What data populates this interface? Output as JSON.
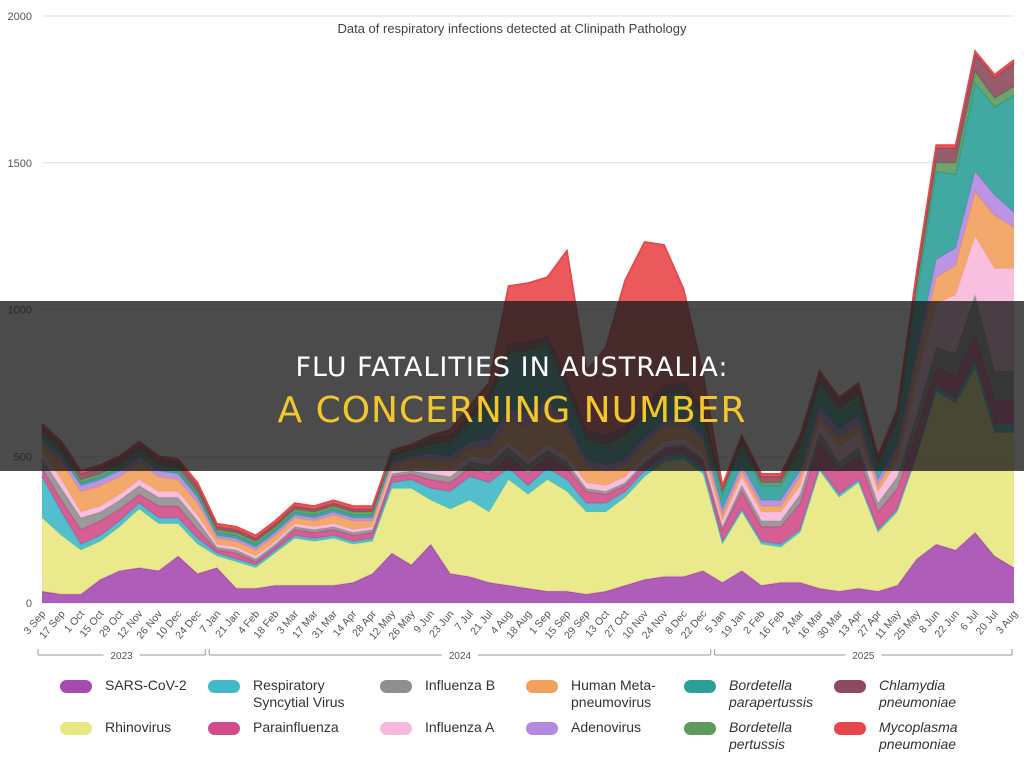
{
  "banner": {
    "line1": "FLU FATALITIES IN AUSTRALIA:",
    "line2": "A CONCERNING NUMBER"
  },
  "chart_data": {
    "type": "area",
    "stacked": true,
    "title": "Data of respiratory infections detected at Clinipath Pathology",
    "xlabel": "",
    "ylabel": "",
    "ylim": [
      0,
      2000
    ],
    "yticks": [
      0,
      500,
      1000,
      1500,
      2000
    ],
    "grid": true,
    "legend_position": "bottom",
    "year_labels": [
      "2023",
      "2024",
      "2025"
    ],
    "x": [
      "3 Sep",
      "17 Sep",
      "1 Oct",
      "15 Oct",
      "29 Oct",
      "12 Nov",
      "26 Nov",
      "10 Dec",
      "24 Dec",
      "7 Jan",
      "21 Jan",
      "4 Feb",
      "18 Feb",
      "3 Mar",
      "17 Mar",
      "31 Mar",
      "14 Apr",
      "28 Apr",
      "12 May",
      "26 May",
      "9 Jun",
      "23 Jun",
      "7 Jul",
      "21 Jul",
      "4 Aug",
      "18 Aug",
      "1 Sep",
      "15 Sep",
      "29 Sep",
      "13 Oct",
      "27 Oct",
      "10 Nov",
      "24 Nov",
      "8 Dec",
      "22 Dec",
      "5 Jan",
      "19 Jan",
      "2 Feb",
      "16 Feb",
      "2 Mar",
      "16 Mar",
      "30 Mar",
      "13 Apr",
      "27 Apr",
      "11 May",
      "25 May",
      "8 Jun",
      "22 Jun",
      "6 Jul",
      "20 Jul",
      "3 Aug"
    ],
    "series": [
      {
        "name": "SARS-CoV-2",
        "color": "#a54bb0",
        "values": [
          40,
          30,
          30,
          80,
          110,
          120,
          110,
          160,
          100,
          120,
          50,
          50,
          60,
          60,
          60,
          60,
          70,
          100,
          170,
          130,
          200,
          100,
          90,
          70,
          60,
          50,
          40,
          40,
          30,
          40,
          60,
          80,
          90,
          90,
          110,
          70,
          110,
          60,
          70,
          70,
          50,
          40,
          50,
          40,
          60,
          150,
          200,
          180,
          240,
          160,
          120
        ]
      },
      {
        "name": "Rhinovirus",
        "color": "#e8e880",
        "values": [
          250,
          200,
          150,
          130,
          150,
          200,
          160,
          110,
          100,
          40,
          90,
          70,
          110,
          160,
          150,
          160,
          130,
          110,
          220,
          260,
          150,
          220,
          260,
          240,
          360,
          320,
          380,
          340,
          280,
          270,
          300,
          350,
          390,
          400,
          330,
          130,
          200,
          140,
          120,
          170,
          400,
          320,
          360,
          200,
          250,
          350,
          520,
          500,
          560,
          420,
          460
        ]
      },
      {
        "name": "Respiratory Syncytial Virus",
        "color": "#40b8c8",
        "values": [
          140,
          80,
          20,
          20,
          20,
          20,
          20,
          20,
          20,
          10,
          10,
          10,
          10,
          10,
          10,
          10,
          10,
          10,
          20,
          30,
          40,
          60,
          80,
          100,
          40,
          30,
          40,
          40,
          30,
          30,
          20,
          20,
          20,
          20,
          20,
          10,
          10,
          10,
          10,
          10,
          10,
          10,
          10,
          10,
          10,
          10,
          20,
          20,
          30,
          30,
          30
        ]
      },
      {
        "name": "Parainfluenza",
        "color": "#d04c88",
        "values": [
          30,
          40,
          50,
          50,
          40,
          30,
          40,
          40,
          30,
          10,
          20,
          10,
          10,
          20,
          20,
          20,
          20,
          20,
          20,
          20,
          30,
          30,
          30,
          30,
          40,
          40,
          40,
          40,
          40,
          30,
          20,
          20,
          20,
          20,
          20,
          40,
          60,
          50,
          60,
          90,
          90,
          80,
          80,
          60,
          70,
          70,
          60,
          70,
          80,
          80,
          80
        ]
      },
      {
        "name": "Influenza B",
        "color": "#8f8f8f",
        "values": [
          30,
          40,
          40,
          30,
          30,
          30,
          30,
          30,
          30,
          10,
          10,
          10,
          10,
          10,
          10,
          10,
          10,
          10,
          10,
          10,
          20,
          20,
          20,
          30,
          30,
          30,
          20,
          20,
          10,
          10,
          10,
          10,
          10,
          10,
          10,
          10,
          20,
          20,
          20,
          30,
          30,
          30,
          30,
          30,
          40,
          60,
          70,
          80,
          140,
          100,
          100
        ]
      },
      {
        "name": "Influenza A",
        "color": "#f7b8dc",
        "values": [
          30,
          30,
          20,
          20,
          20,
          20,
          20,
          20,
          20,
          10,
          10,
          10,
          10,
          10,
          10,
          10,
          10,
          10,
          10,
          10,
          20,
          20,
          20,
          20,
          20,
          20,
          20,
          20,
          20,
          20,
          20,
          20,
          20,
          20,
          20,
          20,
          30,
          30,
          30,
          30,
          40,
          50,
          50,
          40,
          50,
          120,
          150,
          200,
          200,
          350,
          350
        ]
      },
      {
        "name": "Human Meta-pneumovirus",
        "color": "#f2a05c",
        "values": [
          20,
          60,
          70,
          70,
          60,
          60,
          50,
          40,
          40,
          20,
          20,
          20,
          20,
          20,
          20,
          30,
          30,
          20,
          20,
          30,
          30,
          30,
          30,
          40,
          70,
          110,
          120,
          100,
          60,
          50,
          40,
          40,
          50,
          50,
          40,
          20,
          20,
          20,
          20,
          30,
          20,
          30,
          30,
          20,
          30,
          60,
          90,
          100,
          150,
          180,
          140
        ]
      },
      {
        "name": "Adenovirus",
        "color": "#b489e0",
        "values": [
          20,
          20,
          20,
          20,
          20,
          20,
          20,
          20,
          20,
          10,
          10,
          10,
          10,
          10,
          10,
          10,
          10,
          10,
          10,
          10,
          20,
          20,
          20,
          30,
          40,
          50,
          30,
          20,
          20,
          20,
          20,
          20,
          20,
          20,
          20,
          20,
          20,
          20,
          20,
          20,
          30,
          30,
          30,
          20,
          30,
          40,
          60,
          60,
          70,
          70,
          50
        ]
      },
      {
        "name": "Bordetella parapertussis",
        "color": "#2e9e98",
        "values": [
          10,
          10,
          10,
          10,
          10,
          10,
          10,
          10,
          10,
          10,
          10,
          10,
          10,
          10,
          10,
          10,
          10,
          10,
          10,
          10,
          20,
          40,
          60,
          120,
          180,
          200,
          180,
          100,
          60,
          60,
          60,
          60,
          60,
          60,
          40,
          50,
          60,
          50,
          50,
          60,
          60,
          50,
          50,
          40,
          60,
          200,
          300,
          250,
          300,
          300,
          400
        ]
      },
      {
        "name": "Bordetella pertussis",
        "color": "#5e9a5c",
        "values": [
          10,
          10,
          10,
          10,
          10,
          10,
          10,
          10,
          10,
          10,
          10,
          10,
          10,
          10,
          10,
          10,
          10,
          10,
          10,
          10,
          10,
          10,
          10,
          10,
          10,
          10,
          10,
          10,
          10,
          10,
          20,
          20,
          30,
          30,
          20,
          10,
          10,
          10,
          10,
          20,
          20,
          20,
          20,
          10,
          20,
          20,
          30,
          40,
          40,
          30,
          30
        ]
      },
      {
        "name": "Chlamydia pneumoniae",
        "color": "#8c4a5e",
        "values": [
          20,
          20,
          20,
          20,
          20,
          20,
          20,
          20,
          20,
          10,
          10,
          10,
          10,
          10,
          10,
          10,
          10,
          10,
          10,
          10,
          20,
          20,
          20,
          20,
          30,
          30,
          30,
          30,
          30,
          30,
          30,
          30,
          30,
          30,
          30,
          10,
          20,
          20,
          20,
          30,
          30,
          30,
          30,
          20,
          30,
          40,
          50,
          50,
          60,
          70,
          80
        ]
      },
      {
        "name": "Mycoplasma pneumoniae",
        "color": "#e8474a",
        "values": [
          10,
          10,
          10,
          10,
          10,
          10,
          10,
          10,
          10,
          10,
          10,
          10,
          10,
          10,
          10,
          10,
          10,
          10,
          10,
          10,
          10,
          20,
          30,
          40,
          200,
          200,
          200,
          440,
          200,
          300,
          500,
          560,
          480,
          320,
          120,
          10,
          10,
          10,
          10,
          10,
          10,
          10,
          10,
          10,
          10,
          10,
          10,
          10,
          10,
          10,
          10
        ]
      }
    ],
    "legend_entries": [
      {
        "label": "SARS-CoV-2",
        "italic": false
      },
      {
        "label": "Respiratory Syncytial Virus",
        "italic": false
      },
      {
        "label": "Influenza B",
        "italic": false
      },
      {
        "label": "Human Meta-pneumovirus",
        "italic": false
      },
      {
        "label": "Bordetella parapertussis",
        "italic": true
      },
      {
        "label": "Chlamydia pneumoniae",
        "italic": true
      },
      {
        "label": "Rhinovirus",
        "italic": false
      },
      {
        "label": "Parainfluenza",
        "italic": false
      },
      {
        "label": "Influenza A",
        "italic": false
      },
      {
        "label": "Adenovirus",
        "italic": false
      },
      {
        "label": "Bordetella pertussis",
        "italic": true
      },
      {
        "label": "Mycoplasma pneumoniae",
        "italic": true
      }
    ]
  }
}
